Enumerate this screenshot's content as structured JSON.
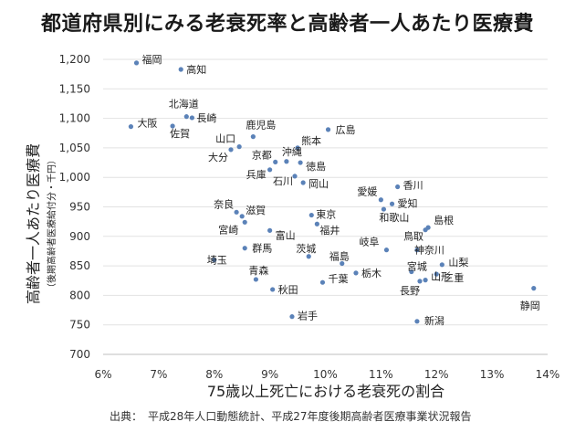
{
  "chart_data": {
    "type": "scatter",
    "title": "都道府県別にみる老衰死率と高齢者一人あたり医療費",
    "xlabel": "75歳以上死亡における老衰死の割合",
    "ylabel": "高齢者一人あたり医療費",
    "ylabel_sub": "（後期高齢者医療給付分・千円）",
    "xlim": [
      6,
      14
    ],
    "ylim": [
      700,
      1200
    ],
    "xticks": [
      6,
      7,
      8,
      9,
      10,
      11,
      12,
      13,
      14
    ],
    "yticks": [
      700,
      750,
      800,
      850,
      900,
      950,
      1000,
      1050,
      1100,
      1150,
      1200
    ],
    "x_unit": "%",
    "grid": "horizontal",
    "marker_color": "#5b82b8",
    "points": [
      {
        "name": "福岡",
        "x": 6.6,
        "y": 1194
      },
      {
        "name": "高知",
        "x": 7.4,
        "y": 1183
      },
      {
        "name": "北海道",
        "x": 7.5,
        "y": 1103
      },
      {
        "name": "長崎",
        "x": 7.6,
        "y": 1101
      },
      {
        "name": "大阪",
        "x": 6.5,
        "y": 1086
      },
      {
        "name": "佐賀",
        "x": 7.25,
        "y": 1087
      },
      {
        "name": "鹿児島",
        "x": 8.7,
        "y": 1069
      },
      {
        "name": "広島",
        "x": 10.05,
        "y": 1081
      },
      {
        "name": "山口",
        "x": 8.45,
        "y": 1052
      },
      {
        "name": "大分",
        "x": 8.3,
        "y": 1047
      },
      {
        "name": "熊本",
        "x": 9.5,
        "y": 1050
      },
      {
        "name": "京都",
        "x": 9.1,
        "y": 1026
      },
      {
        "name": "沖縄",
        "x": 9.3,
        "y": 1027
      },
      {
        "name": "徳島",
        "x": 9.55,
        "y": 1025
      },
      {
        "name": "兵庫",
        "x": 9.0,
        "y": 1013
      },
      {
        "name": "石川",
        "x": 9.45,
        "y": 1002
      },
      {
        "name": "岡山",
        "x": 9.6,
        "y": 991
      },
      {
        "name": "香川",
        "x": 11.3,
        "y": 984
      },
      {
        "name": "愛媛",
        "x": 11.0,
        "y": 962
      },
      {
        "name": "愛知",
        "x": 11.2,
        "y": 955
      },
      {
        "name": "和歌山",
        "x": 11.05,
        "y": 946
      },
      {
        "name": "奈良",
        "x": 8.4,
        "y": 941
      },
      {
        "name": "東京",
        "x": 9.75,
        "y": 936
      },
      {
        "name": "滋賀",
        "x": 8.5,
        "y": 934
      },
      {
        "name": "島根",
        "x": 11.85,
        "y": 915
      },
      {
        "name": "鳥取",
        "x": 11.8,
        "y": 911
      },
      {
        "name": "宮崎",
        "x": 8.55,
        "y": 924
      },
      {
        "name": "福井",
        "x": 9.85,
        "y": 921
      },
      {
        "name": "富山",
        "x": 9.0,
        "y": 910
      },
      {
        "name": "岐阜",
        "x": 11.1,
        "y": 877
      },
      {
        "name": "神奈川",
        "x": 11.65,
        "y": 877
      },
      {
        "name": "群馬",
        "x": 8.55,
        "y": 880
      },
      {
        "name": "茨城",
        "x": 9.7,
        "y": 866
      },
      {
        "name": "福島",
        "x": 10.3,
        "y": 854
      },
      {
        "name": "埼玉",
        "x": 8.0,
        "y": 860
      },
      {
        "name": "山梨",
        "x": 12.1,
        "y": 852
      },
      {
        "name": "宮城",
        "x": 11.55,
        "y": 840
      },
      {
        "name": "三重",
        "x": 12.0,
        "y": 836
      },
      {
        "name": "栃木",
        "x": 10.55,
        "y": 838
      },
      {
        "name": "青森",
        "x": 8.75,
        "y": 827
      },
      {
        "name": "千葉",
        "x": 9.95,
        "y": 822
      },
      {
        "name": "長野",
        "x": 11.7,
        "y": 824
      },
      {
        "name": "山形",
        "x": 11.8,
        "y": 826
      },
      {
        "name": "秋田",
        "x": 9.05,
        "y": 810
      },
      {
        "name": "静岡",
        "x": 13.75,
        "y": 812
      },
      {
        "name": "岩手",
        "x": 9.4,
        "y": 764
      },
      {
        "name": "新潟",
        "x": 11.65,
        "y": 756
      }
    ]
  },
  "source_note": "出典：　平成28年人口動態統計、平成27年度後期高齢者医療事業状況報告"
}
